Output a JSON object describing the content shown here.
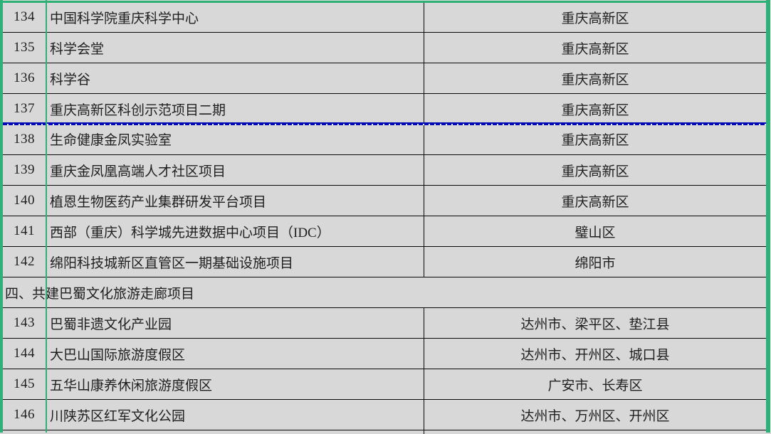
{
  "colors": {
    "background": "#d8d8d8",
    "grid_line": "#0a0a0a",
    "guide_green": "#2eb078",
    "page_break_blue": "#0209b8",
    "text": "#1f1f1f"
  },
  "table": {
    "rows": [
      {
        "number": "134",
        "name": "中国科学院重庆科学中心",
        "location": "重庆高新区"
      },
      {
        "number": "135",
        "name": "科学会堂",
        "location": "重庆高新区"
      },
      {
        "number": "136",
        "name": "科学谷",
        "location": "重庆高新区"
      },
      {
        "number": "137",
        "name": "重庆高新区科创示范项目二期",
        "location": "重庆高新区"
      },
      {
        "number": "138",
        "name": "生命健康金凤实验室",
        "location": "重庆高新区"
      },
      {
        "number": "139",
        "name": "重庆金凤凰高端人才社区项目",
        "location": "重庆高新区"
      },
      {
        "number": "140",
        "name": "植恩生物医药产业集群研发平台项目",
        "location": "重庆高新区"
      },
      {
        "number": "141",
        "name": "西部（重庆）科学城先进数据中心项目（IDC）",
        "location": "璧山区"
      },
      {
        "number": "142",
        "name": "绵阳科技城新区直管区一期基础设施项目",
        "location": "绵阳市"
      },
      {
        "label": "四、共建巴蜀文化旅游走廊项目"
      },
      {
        "number": "143",
        "name": "巴蜀非遗文化产业园",
        "location": "达州市、梁平区、垫江县"
      },
      {
        "number": "144",
        "name": "大巴山国际旅游度假区",
        "location": "达州市、开州区、城口县"
      },
      {
        "number": "145",
        "name": "五华山康养休闲旅游度假区",
        "location": "广安市、长寿区"
      },
      {
        "number": "146",
        "name": "川陕苏区红军文化公园",
        "location": "达州市、万州区、开州区"
      }
    ]
  }
}
